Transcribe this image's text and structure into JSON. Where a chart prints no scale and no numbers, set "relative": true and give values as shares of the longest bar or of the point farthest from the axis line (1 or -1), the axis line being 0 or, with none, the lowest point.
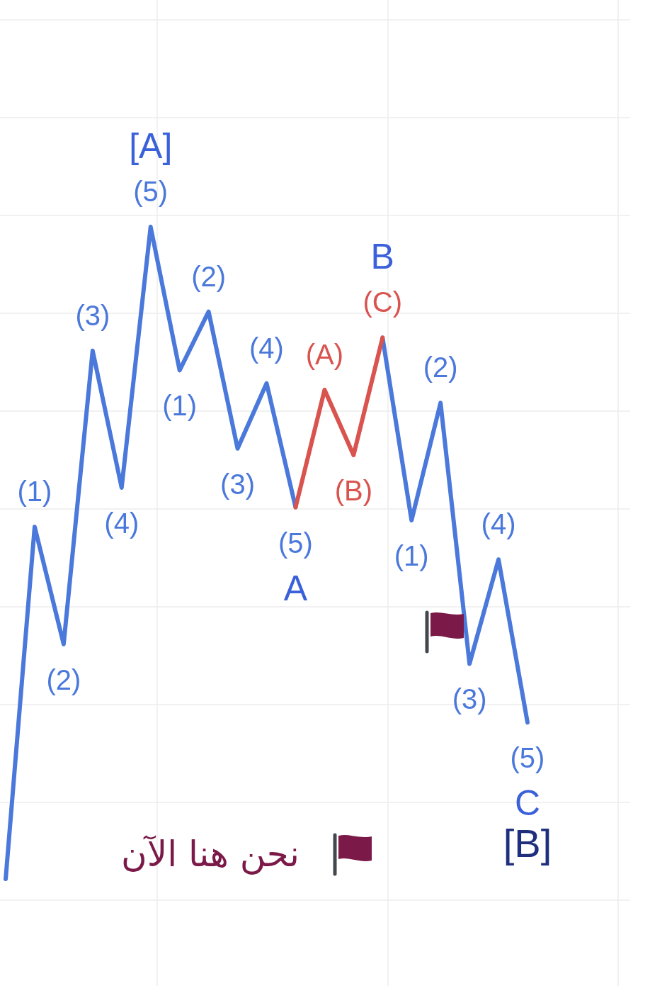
{
  "chart_data": {
    "type": "line",
    "relative": true,
    "grid": true,
    "categories": [
      null,
      null,
      null,
      null,
      null,
      null,
      null,
      null,
      null,
      null,
      null,
      null,
      null,
      null,
      null,
      null,
      null,
      null,
      null
    ],
    "series": [
      {
        "color": "#4a78db",
        "values": [
          0,
          0.54,
          0.36,
          0.81,
          0.6,
          1,
          0.78,
          0.87,
          0.66,
          0.76,
          0.57,
          null,
          null,
          0.83,
          0.55,
          0.73,
          0.33,
          0.49,
          0.24
        ]
      },
      {
        "color": "#d9534f",
        "values": [
          null,
          null,
          null,
          null,
          null,
          null,
          null,
          null,
          null,
          null,
          0.57,
          0.75,
          0.65,
          0.83,
          null,
          null,
          null,
          null,
          null
        ]
      }
    ],
    "annotations": [
      {
        "text": "(1)",
        "y": 0.54
      },
      {
        "text": "(2)",
        "y": 0.36
      },
      {
        "text": "(3)",
        "y": 0.81
      },
      {
        "text": "(4)",
        "y": 0.6
      },
      {
        "text": "(5)",
        "y": 1
      },
      {
        "text": "[A]",
        "y": 1
      },
      {
        "text": "(1)",
        "y": 0.78
      },
      {
        "text": "(2)",
        "y": 0.87
      },
      {
        "text": "(3)",
        "y": 0.66
      },
      {
        "text": "(4)",
        "y": 0.76
      },
      {
        "text": "(5)",
        "y": 0.57
      },
      {
        "text": "A",
        "y": 0.57
      },
      {
        "text": "(A)",
        "y": 0.75
      },
      {
        "text": "(B)",
        "y": 0.65
      },
      {
        "text": "(C)",
        "y": 0.83
      },
      {
        "text": "B",
        "y": 0.83
      },
      {
        "text": "(1)",
        "y": 0.55
      },
      {
        "text": "(2)",
        "y": 0.73
      },
      {
        "text": "(3)",
        "y": 0.33
      },
      {
        "text": "(4)",
        "y": 0.49
      },
      {
        "text": "(5)",
        "y": 0.24
      },
      {
        "text": "C",
        "y": 0.24
      },
      {
        "text": "[B]",
        "y": 0.24
      },
      "نحن هنا الآن"
    ]
  }
}
